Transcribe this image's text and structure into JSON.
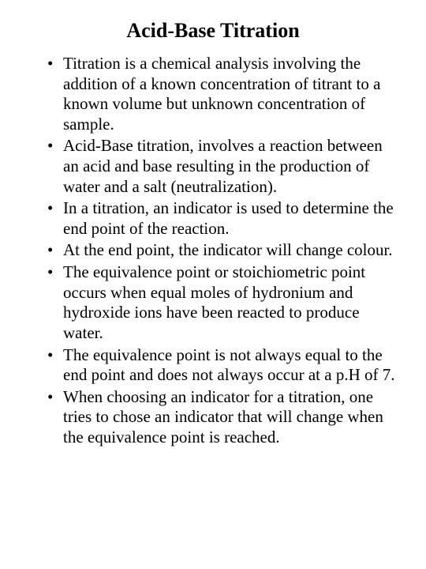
{
  "title": "Acid-Base Titration",
  "bullets": [
    "Titration is a chemical analysis involving the addition of a known concentration of titrant to a known volume but unknown concentration of sample.",
    "Acid-Base titration, involves a reaction between an acid and base resulting in the production of water and a salt (neutralization).",
    "In a titration, an indicator is used to determine the end point of the reaction.",
    "At the end point, the indicator will change colour.",
    "The equivalence point or stoichiometric point occurs when equal moles of hydronium and hydroxide ions have been reacted to produce water.",
    "The equivalence point is not always equal to the end point and does not always occur at a p.H of 7.",
    "When choosing an indicator for a titration, one tries to chose an indicator that will change when the equivalence point is reached."
  ],
  "styling": {
    "background_color": "#ffffff",
    "text_color": "#000000",
    "title_fontsize": 26,
    "title_fontweight": "bold",
    "body_fontsize": 21,
    "font_family": "Times New Roman",
    "line_height": 1.22
  }
}
